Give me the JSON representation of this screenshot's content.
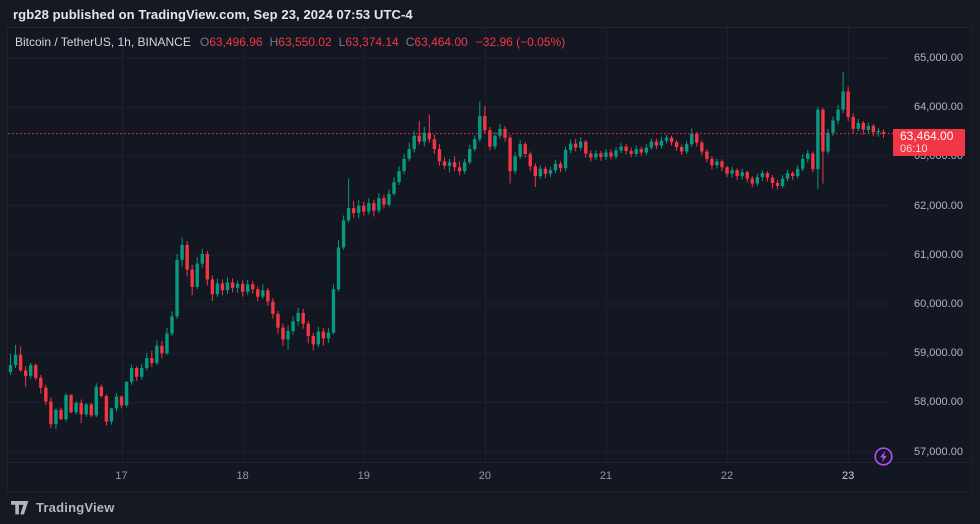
{
  "attribution": {
    "text": "rgb28 published on TradingView.com, Sep 23, 2024 07:53 UTC-4"
  },
  "legend": {
    "title": "Bitcoin / TetherUS, 1h, BINANCE",
    "o_label": "O",
    "o": "63,496.96",
    "h_label": "H",
    "h": "63,550.02",
    "l_label": "L",
    "l": "63,374.14",
    "c_label": "C",
    "c": "63,464.00",
    "change": "−32.96 (−0.05%)"
  },
  "price_scale": {
    "ticks": [
      {
        "label": "65,000.00",
        "value": 65000
      },
      {
        "label": "64,000.00",
        "value": 64000
      },
      {
        "label": "63,000.00",
        "value": 63000
      },
      {
        "label": "62,000.00",
        "value": 62000
      },
      {
        "label": "61,000.00",
        "value": 61000
      },
      {
        "label": "60,000.00",
        "value": 60000
      },
      {
        "label": "59,000.00",
        "value": 59000
      },
      {
        "label": "58,000.00",
        "value": 58000
      },
      {
        "label": "57,000.00",
        "value": 57000
      }
    ],
    "last": {
      "price": "63,464.00",
      "countdown": "06:10"
    }
  },
  "time_scale": {
    "ticks": [
      {
        "label": "17",
        "candle_index": 22,
        "current": false
      },
      {
        "label": "18",
        "candle_index": 46,
        "current": false
      },
      {
        "label": "19",
        "candle_index": 70,
        "current": false
      },
      {
        "label": "20",
        "candle_index": 94,
        "current": false
      },
      {
        "label": "21",
        "candle_index": 118,
        "current": false
      },
      {
        "label": "22",
        "candle_index": 142,
        "current": false
      },
      {
        "label": "23",
        "candle_index": 166,
        "current": true
      }
    ]
  },
  "footer": {
    "brand": "TradingView"
  },
  "colors": {
    "up_candle": "#089981",
    "down_candle": "#F23645",
    "last_price": "#F23645",
    "grid": "#1C2130",
    "boost_purple": "#B14BF4",
    "background": "#131722"
  },
  "chart_data": {
    "type": "candlestick",
    "title": "Bitcoin / TetherUS",
    "exchange": "BINANCE",
    "interval": "1h",
    "ohlc_current": {
      "open": 63496.96,
      "high": 63550.02,
      "low": 63374.14,
      "close": 63464.0,
      "change": -32.96,
      "change_pct": -0.05
    },
    "current_price": 63464.0,
    "y_axis": {
      "min": 56790,
      "max": 65610,
      "gridline_step": 1000
    },
    "x_axis": {
      "tick_labels": [
        "17",
        "18",
        "19",
        "20",
        "21",
        "22",
        "23"
      ],
      "grid": true
    },
    "legend_position": "top-left",
    "candles_format": [
      "open",
      "high",
      "low",
      "close"
    ],
    "candles": [
      [
        58620,
        58990,
        58560,
        58760
      ],
      [
        58760,
        59170,
        58700,
        58970
      ],
      [
        58970,
        59140,
        58620,
        58650
      ],
      [
        58650,
        58740,
        58320,
        58540
      ],
      [
        58540,
        58800,
        58480,
        58760
      ],
      [
        58760,
        58790,
        58450,
        58500
      ],
      [
        58500,
        58560,
        58180,
        58300
      ],
      [
        58300,
        58360,
        57950,
        58020
      ],
      [
        58020,
        58100,
        57480,
        57560
      ],
      [
        57560,
        57880,
        57460,
        57850
      ],
      [
        57850,
        57900,
        57640,
        57660
      ],
      [
        57660,
        58190,
        57610,
        58150
      ],
      [
        58150,
        58170,
        57780,
        57800
      ],
      [
        57800,
        58030,
        57750,
        57990
      ],
      [
        57990,
        58060,
        57580,
        57760
      ],
      [
        57760,
        57990,
        57710,
        57960
      ],
      [
        57960,
        57990,
        57700,
        57740
      ],
      [
        57740,
        58390,
        57700,
        58320
      ],
      [
        58320,
        58360,
        58100,
        58130
      ],
      [
        58130,
        58160,
        57530,
        57610
      ],
      [
        57610,
        57890,
        57550,
        57880
      ],
      [
        57880,
        58190,
        57810,
        58120
      ],
      [
        58120,
        58140,
        57880,
        57940
      ],
      [
        57940,
        58430,
        57900,
        58420
      ],
      [
        58420,
        58770,
        58360,
        58700
      ],
      [
        58700,
        58740,
        58440,
        58520
      ],
      [
        58520,
        58780,
        58460,
        58700
      ],
      [
        58700,
        59000,
        58650,
        58900
      ],
      [
        58900,
        59050,
        58720,
        58800
      ],
      [
        58800,
        59260,
        58760,
        59150
      ],
      [
        59150,
        59250,
        58900,
        59000
      ],
      [
        59000,
        59520,
        58960,
        59400
      ],
      [
        59400,
        59850,
        59350,
        59750
      ],
      [
        59750,
        61020,
        59700,
        60900
      ],
      [
        60900,
        61350,
        60760,
        61200
      ],
      [
        61200,
        61280,
        60560,
        60700
      ],
      [
        60700,
        60800,
        60180,
        60350
      ],
      [
        60350,
        60950,
        60300,
        60820
      ],
      [
        60820,
        61120,
        60740,
        61020
      ],
      [
        61020,
        61080,
        60380,
        60500
      ],
      [
        60500,
        60580,
        60060,
        60200
      ],
      [
        60200,
        60520,
        60140,
        60420
      ],
      [
        60420,
        60500,
        60180,
        60280
      ],
      [
        60280,
        60540,
        60200,
        60440
      ],
      [
        60440,
        60520,
        60240,
        60330
      ],
      [
        60330,
        60480,
        60230,
        60410
      ],
      [
        60410,
        60480,
        60150,
        60250
      ],
      [
        60250,
        60490,
        60190,
        60400
      ],
      [
        60400,
        60470,
        60210,
        60300
      ],
      [
        60300,
        60360,
        60050,
        60150
      ],
      [
        60150,
        60400,
        60100,
        60280
      ],
      [
        60280,
        60330,
        59960,
        60050
      ],
      [
        60050,
        60120,
        59700,
        59800
      ],
      [
        59800,
        59860,
        59400,
        59520
      ],
      [
        59520,
        59600,
        59150,
        59280
      ],
      [
        59280,
        59560,
        59080,
        59450
      ],
      [
        59450,
        59750,
        59380,
        59650
      ],
      [
        59650,
        59920,
        59560,
        59820
      ],
      [
        59820,
        59900,
        59500,
        59600
      ],
      [
        59600,
        59660,
        59200,
        59350
      ],
      [
        59350,
        59420,
        59060,
        59180
      ],
      [
        59180,
        59540,
        59120,
        59440
      ],
      [
        59440,
        59520,
        59160,
        59300
      ],
      [
        59300,
        59520,
        59210,
        59420
      ],
      [
        59420,
        60400,
        59380,
        60300
      ],
      [
        60300,
        61300,
        60250,
        61150
      ],
      [
        61150,
        61800,
        61100,
        61700
      ],
      [
        61700,
        62550,
        61650,
        61950
      ],
      [
        61950,
        62100,
        61750,
        61850
      ],
      [
        61850,
        62120,
        61740,
        62000
      ],
      [
        62000,
        62080,
        61800,
        61880
      ],
      [
        61880,
        62150,
        61820,
        62050
      ],
      [
        62050,
        62120,
        61780,
        61900
      ],
      [
        61900,
        62250,
        61850,
        62150
      ],
      [
        62150,
        62220,
        61940,
        62020
      ],
      [
        62020,
        62330,
        61980,
        62240
      ],
      [
        62240,
        62580,
        62200,
        62480
      ],
      [
        62480,
        62800,
        62420,
        62700
      ],
      [
        62700,
        63050,
        62640,
        62950
      ],
      [
        62950,
        63280,
        62900,
        63150
      ],
      [
        63150,
        63520,
        63080,
        63420
      ],
      [
        63420,
        63720,
        63240,
        63300
      ],
      [
        63300,
        63600,
        63200,
        63480
      ],
      [
        63480,
        63850,
        63280,
        63350
      ],
      [
        63350,
        63450,
        63050,
        63150
      ],
      [
        63150,
        63250,
        62810,
        62900
      ],
      [
        62900,
        62980,
        62740,
        62810
      ],
      [
        62810,
        62950,
        62680,
        62880
      ],
      [
        62880,
        63000,
        62700,
        62780
      ],
      [
        62780,
        62900,
        62620,
        62700
      ],
      [
        62700,
        62950,
        62640,
        62880
      ],
      [
        62880,
        63240,
        62840,
        63150
      ],
      [
        63150,
        63430,
        63100,
        63350
      ],
      [
        63350,
        64120,
        63300,
        63820
      ],
      [
        63820,
        64030,
        63470,
        63530
      ],
      [
        63530,
        63600,
        63120,
        63200
      ],
      [
        63200,
        63500,
        63140,
        63420
      ],
      [
        63420,
        63660,
        63360,
        63560
      ],
      [
        63560,
        63620,
        63300,
        63380
      ],
      [
        63380,
        63440,
        62450,
        62700
      ],
      [
        62700,
        63080,
        62640,
        63000
      ],
      [
        63000,
        63330,
        62950,
        63250
      ],
      [
        63250,
        63300,
        62980,
        63050
      ],
      [
        63050,
        63100,
        62700,
        62800
      ],
      [
        62800,
        62860,
        62380,
        62600
      ],
      [
        62600,
        62820,
        62550,
        62750
      ],
      [
        62750,
        62800,
        62560,
        62650
      ],
      [
        62650,
        62790,
        62580,
        62720
      ],
      [
        62720,
        62930,
        62660,
        62850
      ],
      [
        62850,
        62900,
        62680,
        62760
      ],
      [
        62760,
        63200,
        62700,
        63130
      ],
      [
        63130,
        63340,
        63060,
        63260
      ],
      [
        63260,
        63360,
        63100,
        63180
      ],
      [
        63180,
        63390,
        63120,
        63300
      ],
      [
        63300,
        63340,
        62980,
        63060
      ],
      [
        63060,
        63120,
        62900,
        62980
      ],
      [
        62980,
        63130,
        62920,
        63060
      ],
      [
        63060,
        63110,
        62910,
        62990
      ],
      [
        62990,
        63150,
        62930,
        63080
      ],
      [
        63080,
        63140,
        62940,
        63000
      ],
      [
        63000,
        63190,
        62950,
        63120
      ],
      [
        63120,
        63270,
        63060,
        63200
      ],
      [
        63200,
        63250,
        63040,
        63110
      ],
      [
        63110,
        63180,
        62980,
        63050
      ],
      [
        63050,
        63220,
        63000,
        63150
      ],
      [
        63150,
        63200,
        63010,
        63080
      ],
      [
        63080,
        63250,
        63020,
        63180
      ],
      [
        63180,
        63370,
        63130,
        63300
      ],
      [
        63300,
        63360,
        63150,
        63220
      ],
      [
        63220,
        63400,
        63160,
        63320
      ],
      [
        63320,
        63440,
        63260,
        63380
      ],
      [
        63380,
        63420,
        63220,
        63290
      ],
      [
        63290,
        63330,
        63110,
        63190
      ],
      [
        63190,
        63240,
        63030,
        63100
      ],
      [
        63100,
        63320,
        63050,
        63250
      ],
      [
        63250,
        63570,
        63200,
        63460
      ],
      [
        63460,
        63500,
        63200,
        63280
      ],
      [
        63280,
        63330,
        63020,
        63100
      ],
      [
        63100,
        63150,
        62880,
        62950
      ],
      [
        62950,
        63000,
        62740,
        62820
      ],
      [
        62820,
        62960,
        62760,
        62900
      ],
      [
        62900,
        62940,
        62700,
        62780
      ],
      [
        62780,
        62810,
        62580,
        62650
      ],
      [
        62650,
        62790,
        62570,
        62720
      ],
      [
        62720,
        62760,
        62520,
        62600
      ],
      [
        62600,
        62750,
        62530,
        62680
      ],
      [
        62680,
        62710,
        62470,
        62550
      ],
      [
        62550,
        62600,
        62380,
        62450
      ],
      [
        62450,
        62650,
        62400,
        62580
      ],
      [
        62580,
        62720,
        62500,
        62660
      ],
      [
        62660,
        62700,
        62490,
        62570
      ],
      [
        62570,
        62620,
        62345,
        62460
      ],
      [
        62460,
        62520,
        62330,
        62400
      ],
      [
        62400,
        62620,
        62360,
        62550
      ],
      [
        62550,
        62730,
        62490,
        62660
      ],
      [
        62660,
        62700,
        62520,
        62600
      ],
      [
        62600,
        62820,
        62550,
        62750
      ],
      [
        62750,
        63050,
        62700,
        62950
      ],
      [
        62950,
        63130,
        62880,
        63060
      ],
      [
        63060,
        63100,
        62680,
        62740
      ],
      [
        62740,
        64010,
        62340,
        63950
      ],
      [
        63950,
        63990,
        62450,
        63100
      ],
      [
        63100,
        63560,
        63040,
        63480
      ],
      [
        63480,
        63810,
        63420,
        63730
      ],
      [
        63730,
        64050,
        63650,
        63950
      ],
      [
        63950,
        64720,
        63880,
        64320
      ],
      [
        64320,
        64420,
        63720,
        63800
      ],
      [
        63800,
        63880,
        63460,
        63560
      ],
      [
        63560,
        63760,
        63500,
        63680
      ],
      [
        63680,
        63720,
        63440,
        63540
      ],
      [
        63540,
        63690,
        63470,
        63620
      ],
      [
        63620,
        63660,
        63410,
        63490
      ],
      [
        63490,
        63580,
        63400,
        63520
      ],
      [
        63496.96,
        63550.02,
        63374.14,
        63464.0
      ]
    ]
  }
}
